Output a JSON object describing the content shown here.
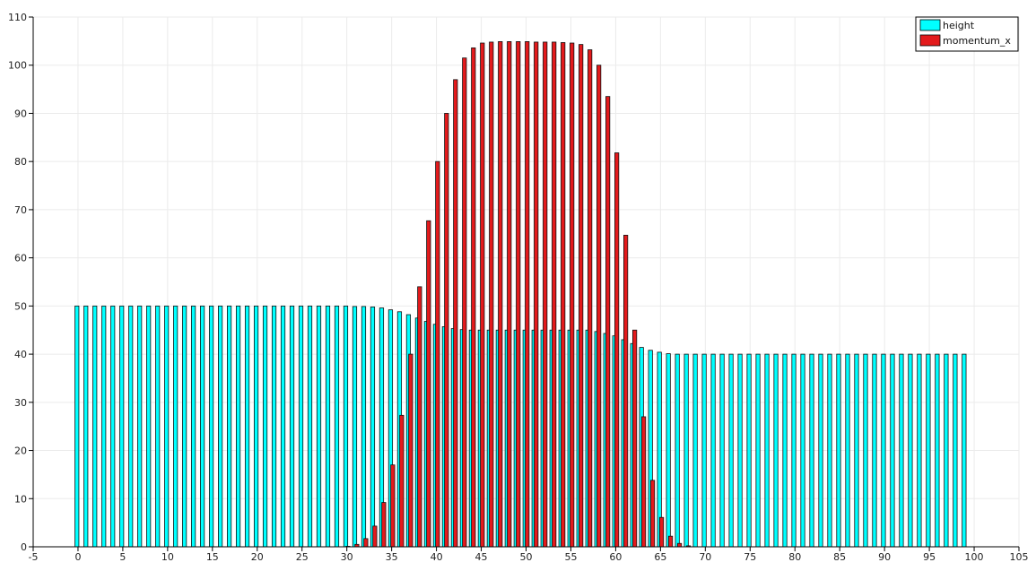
{
  "chart_data": {
    "type": "bar",
    "title": "",
    "xlabel": "",
    "ylabel": "",
    "xlim": [
      -5,
      105
    ],
    "ylim": [
      0,
      110
    ],
    "x_ticks": [
      -5,
      0,
      5,
      10,
      15,
      20,
      25,
      30,
      35,
      40,
      45,
      50,
      55,
      60,
      65,
      70,
      75,
      80,
      85,
      90,
      95,
      100,
      105
    ],
    "y_ticks": [
      0,
      10,
      20,
      30,
      40,
      50,
      60,
      70,
      80,
      90,
      100,
      110
    ],
    "grid": true,
    "legend_position": "top-right",
    "x": [
      0,
      1,
      2,
      3,
      4,
      5,
      6,
      7,
      8,
      9,
      10,
      11,
      12,
      13,
      14,
      15,
      16,
      17,
      18,
      19,
      20,
      21,
      22,
      23,
      24,
      25,
      26,
      27,
      28,
      29,
      30,
      31,
      32,
      33,
      34,
      35,
      36,
      37,
      38,
      39,
      40,
      41,
      42,
      43,
      44,
      45,
      46,
      47,
      48,
      49,
      50,
      51,
      52,
      53,
      54,
      55,
      56,
      57,
      58,
      59,
      60,
      61,
      62,
      63,
      64,
      65,
      66,
      67,
      68,
      69,
      70,
      71,
      72,
      73,
      74,
      75,
      76,
      77,
      78,
      79,
      80,
      81,
      82,
      83,
      84,
      85,
      86,
      87,
      88,
      89,
      90,
      91,
      92,
      93,
      94,
      95,
      96,
      97,
      98,
      99
    ],
    "series": [
      {
        "name": "height",
        "color": "#00ffff",
        "values": [
          50,
          50,
          50,
          50,
          50,
          50,
          50,
          50,
          50,
          50,
          50,
          50,
          50,
          50,
          50,
          50,
          50,
          50,
          50,
          50,
          50,
          50,
          50,
          50,
          50,
          50,
          50,
          50,
          50,
          50,
          50,
          49.9,
          49.9,
          49.8,
          49.6,
          49.2,
          48.8,
          48.2,
          47.5,
          46.8,
          46.2,
          45.7,
          45.3,
          45.1,
          45,
          45,
          45,
          45,
          45,
          45,
          45,
          45,
          45,
          45,
          45,
          45,
          45,
          45,
          44.7,
          44.3,
          43.8,
          43,
          42.2,
          41.4,
          40.8,
          40.4,
          40.1,
          40,
          40,
          40,
          40,
          40,
          40,
          40,
          40,
          40,
          40,
          40,
          40,
          40,
          40,
          40,
          40,
          40,
          40,
          40,
          40,
          40,
          40,
          40,
          40,
          40,
          40,
          40,
          40,
          40,
          40,
          40,
          40,
          40
        ]
      },
      {
        "name": "momentum_x",
        "color": "#e31a1c",
        "values": [
          0,
          0,
          0,
          0,
          0,
          0,
          0,
          0,
          0,
          0,
          0,
          0,
          0,
          0,
          0,
          0,
          0,
          0,
          0,
          0,
          0,
          0,
          0,
          0,
          0,
          0,
          0,
          0,
          0,
          0,
          0.1,
          0.5,
          1.7,
          4.3,
          9.2,
          17,
          27.3,
          40,
          54,
          67.7,
          80,
          90,
          97,
          101.5,
          103.6,
          104.6,
          104.8,
          104.9,
          104.9,
          104.9,
          104.9,
          104.8,
          104.8,
          104.8,
          104.7,
          104.6,
          104.3,
          103.2,
          100,
          93.5,
          81.8,
          64.7,
          45,
          27,
          13.8,
          6.1,
          2.2,
          0.7,
          0.2,
          0,
          0,
          0,
          0,
          0,
          0,
          0,
          0,
          0,
          0,
          0,
          0,
          0,
          0,
          0,
          0,
          0,
          0,
          0,
          0,
          0,
          0,
          0,
          0,
          0,
          0,
          0,
          0,
          0,
          0,
          0
        ]
      }
    ]
  }
}
